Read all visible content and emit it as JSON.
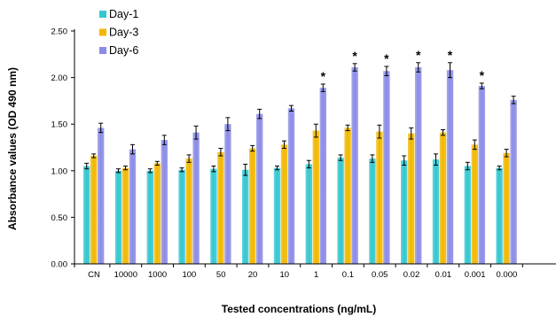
{
  "chart_data": {
    "type": "bar",
    "title": "",
    "xlabel": "Tested concentrations (ng/mL)",
    "ylabel": "Absorbance values (OD 490 nm)",
    "ylim": [
      0,
      2.5
    ],
    "yticks": [
      "0.00",
      "0.50",
      "1.00",
      "1.50",
      "2.00",
      "2.50"
    ],
    "categories": [
      "CN",
      "10000",
      "1000",
      "100",
      "50",
      "20",
      "10",
      "1",
      "0.1",
      "0.05",
      "0.02",
      "0.01",
      "0.001",
      "0.000"
    ],
    "series": [
      {
        "name": "Day-1",
        "color": "#33c7d1",
        "values": [
          1.05,
          1.0,
          1.0,
          1.01,
          1.02,
          1.01,
          1.03,
          1.07,
          1.14,
          1.13,
          1.11,
          1.12,
          1.05,
          1.03
        ],
        "errors": [
          0.03,
          0.02,
          0.02,
          0.02,
          0.03,
          0.06,
          0.02,
          0.04,
          0.03,
          0.04,
          0.05,
          0.06,
          0.04,
          0.02
        ]
      },
      {
        "name": "Day-3",
        "color": "#f2b800",
        "values": [
          1.16,
          1.03,
          1.08,
          1.13,
          1.2,
          1.24,
          1.28,
          1.43,
          1.46,
          1.42,
          1.4,
          1.41,
          1.28,
          1.19
        ],
        "errors": [
          0.02,
          0.02,
          0.02,
          0.04,
          0.04,
          0.03,
          0.04,
          0.07,
          0.03,
          0.07,
          0.06,
          0.03,
          0.05,
          0.04
        ]
      },
      {
        "name": "Day-6",
        "color": "#8b8ce6",
        "values": [
          1.46,
          1.23,
          1.33,
          1.41,
          1.5,
          1.61,
          1.67,
          1.89,
          2.11,
          2.07,
          2.11,
          2.08,
          1.91,
          1.76
        ],
        "errors": [
          0.05,
          0.05,
          0.05,
          0.07,
          0.07,
          0.05,
          0.03,
          0.04,
          0.04,
          0.05,
          0.05,
          0.08,
          0.03,
          0.04
        ]
      }
    ],
    "significance_marker": "*",
    "significant_categories": [
      "1",
      "0.1",
      "0.05",
      "0.02",
      "0.01",
      "0.001"
    ],
    "legend_position": "top-left",
    "grid": false
  }
}
